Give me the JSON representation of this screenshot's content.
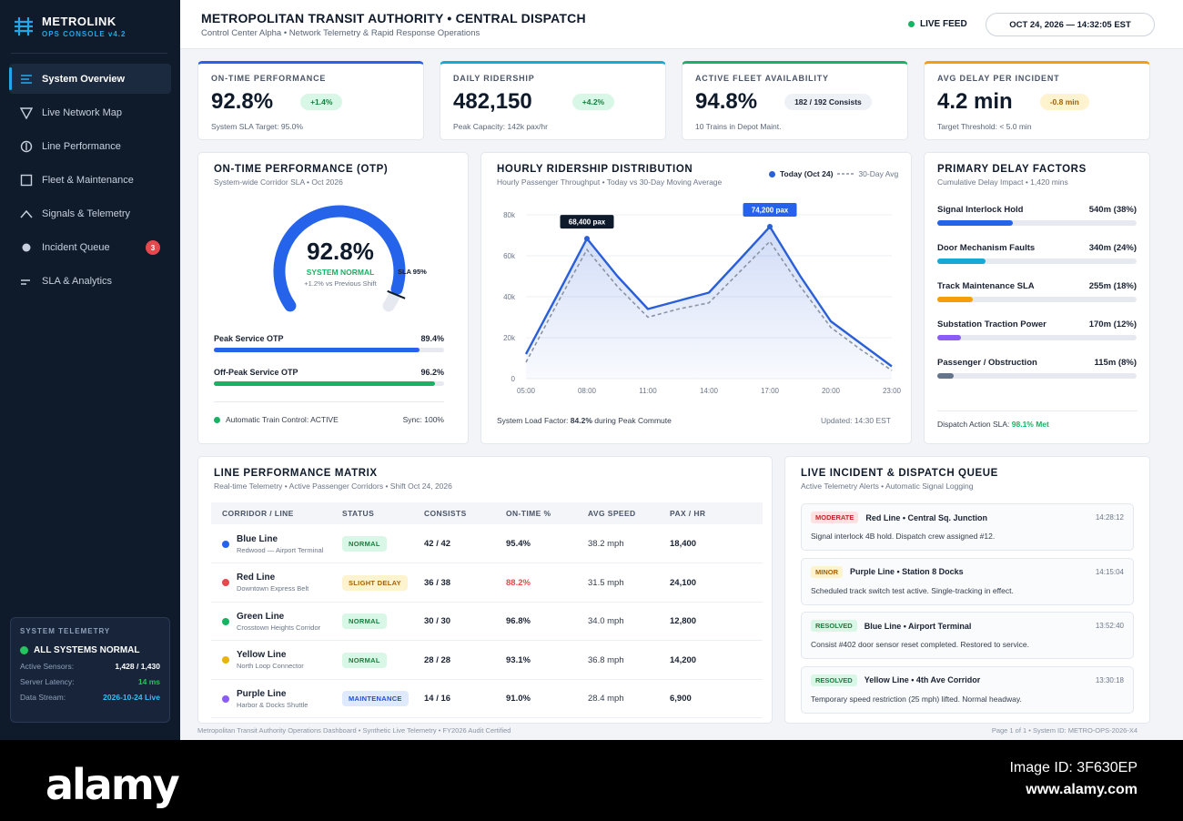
{
  "brand": {
    "title": "METROLINK",
    "subtitle": "OPS CONSOLE v4.2"
  },
  "nav": [
    {
      "label": "System Overview",
      "icon": "list-icon",
      "active": true
    },
    {
      "label": "Live Network Map",
      "icon": "map-icon"
    },
    {
      "label": "Line Performance",
      "icon": "performance-icon"
    },
    {
      "label": "Fleet & Maintenance",
      "icon": "fleet-icon"
    },
    {
      "label": "Signals & Telemetry",
      "icon": "signal-icon"
    },
    {
      "label": "Incident Queue",
      "icon": "incident-icon",
      "badge": "3"
    },
    {
      "label": "SLA & Analytics",
      "icon": "analytics-icon"
    }
  ],
  "telemetry": {
    "heading": "SYSTEM TELEMETRY",
    "status": "ALL SYSTEMS NORMAL",
    "rows": [
      {
        "label": "Active Sensors:",
        "value": "1,428 / 1,430"
      },
      {
        "label": "Server Latency:",
        "value": "14 ms"
      },
      {
        "label": "Data Stream:",
        "value": "2026-10-24 Live"
      }
    ]
  },
  "header": {
    "title": "METROPOLITAN TRANSIT AUTHORITY • CENTRAL DISPATCH",
    "subtitle": "Control Center Alpha • Network Telemetry & Rapid Response Operations",
    "live_label": "LIVE FEED",
    "clock": "OCT 24, 2026 — 14:32:05 EST"
  },
  "kpis": [
    {
      "label": "ON-TIME PERFORMANCE",
      "value": "92.8%",
      "pill": "+1.4%",
      "note": "System SLA Target: 95.0%",
      "accent": "#2563eb",
      "pill_bg": "#d9f7e6",
      "pill_fg": "#15803d"
    },
    {
      "label": "DAILY RIDERSHIP",
      "value": "482,150",
      "pill": "+4.2%",
      "note": "Peak Capacity: 142k pax/hr",
      "accent": "#16a9d6",
      "pill_bg": "#d9f7e6",
      "pill_fg": "#15803d"
    },
    {
      "label": "ACTIVE FLEET AVAILABILITY",
      "value": "94.8%",
      "pill": "182 / 192 Consists",
      "note": "10 Trains in Depot Maint.",
      "accent": "#16b364",
      "pill_bg": "#eef1f5",
      "pill_fg": "#1a2233"
    },
    {
      "label": "AVG DELAY PER INCIDENT",
      "value": "4.2 min",
      "pill": "-0.8 min",
      "note": "Target Threshold: < 5.0 min",
      "accent": "#f59e0b",
      "pill_bg": "#fdf3cf",
      "pill_fg": "#a16207"
    }
  ],
  "otp": {
    "title": "ON-TIME PERFORMANCE (OTP)",
    "subtitle": "System-wide Corridor SLA • Oct 2026",
    "gauge_value": "92.8%",
    "gauge_fraction": 0.928,
    "gauge_status": "SYSTEM NORMAL",
    "gauge_delta": "+1.2% vs Previous Shift",
    "sla_marker": "SLA 95%",
    "sla_fraction": 0.95,
    "bars": [
      {
        "label": "Peak Service OTP",
        "value": "89.4%",
        "fraction": 0.894,
        "color": "#2563eb"
      },
      {
        "label": "Off-Peak Service OTP",
        "value": "96.2%",
        "fraction": 0.962,
        "color": "#16b364"
      }
    ],
    "atc": "Automatic Train Control: ACTIVE",
    "sync": "Sync: 100%"
  },
  "ridership": {
    "title": "HOURLY RIDERSHIP DISTRIBUTION",
    "subtitle": "Hourly Passenger Throughput • Today vs 30-Day Moving Average",
    "legend_today": "Today (Oct 24)",
    "legend_avg": "30-Day Avg",
    "callout_1": "68,400 pax",
    "callout_2": "74,200 pax",
    "footer_prefix": "System Load Factor: ",
    "footer_value": "84.2%",
    "footer_suffix": " during Peak Commute",
    "updated": "Updated: 14:30 EST"
  },
  "chart_data": {
    "type": "area",
    "x": [
      "05:00",
      "06:30",
      "08:00",
      "09:30",
      "11:00",
      "12:30",
      "14:00",
      "15:30",
      "17:00",
      "18:30",
      "20:00",
      "21:30",
      "23:00"
    ],
    "x_ticks": [
      "05:00",
      "08:00",
      "11:00",
      "14:00",
      "17:00",
      "20:00",
      "23:00"
    ],
    "y_ticks": [
      "0",
      "20k",
      "40k",
      "60k",
      "80k"
    ],
    "ylim": [
      0,
      80000
    ],
    "series": [
      {
        "name": "Today (Oct 24)",
        "values": [
          12000,
          40000,
          68400,
          50000,
          34000,
          38000,
          42000,
          58000,
          74200,
          50000,
          28000,
          17000,
          6000
        ],
        "color": "#2a5fd9"
      },
      {
        "name": "30-Day Avg",
        "values": [
          8000,
          36000,
          63000,
          45000,
          30000,
          34000,
          37000,
          52000,
          67000,
          45000,
          25000,
          14000,
          4000
        ],
        "color": "#8a94a4"
      }
    ]
  },
  "delay": {
    "title": "PRIMARY DELAY FACTORS",
    "subtitle": "Cumulative Delay Impact • 1,420 mins",
    "items": [
      {
        "label": "Signal Interlock Hold",
        "value": "540m (38%)",
        "fraction": 0.38,
        "color": "#2563eb"
      },
      {
        "label": "Door Mechanism Faults",
        "value": "340m (24%)",
        "fraction": 0.24,
        "color": "#16a9d6"
      },
      {
        "label": "Track Maintenance SLA",
        "value": "255m (18%)",
        "fraction": 0.18,
        "color": "#f59e0b"
      },
      {
        "label": "Substation Traction Power",
        "value": "170m (12%)",
        "fraction": 0.12,
        "color": "#8b5cf6"
      },
      {
        "label": "Passenger / Obstruction",
        "value": "115m (8%)",
        "fraction": 0.08,
        "color": "#64748b"
      }
    ],
    "footer_prefix": "Dispatch Action SLA: ",
    "footer_value": "98.1% Met"
  },
  "matrix": {
    "title": "LINE PERFORMANCE MATRIX",
    "subtitle": "Real-time Telemetry • Active Passenger Corridors • Shift Oct 24, 2026",
    "columns": [
      "CORRIDOR / LINE",
      "STATUS",
      "CONSISTS",
      "ON-TIME %",
      "AVG SPEED",
      "PAX / HR"
    ],
    "rows": [
      {
        "name": "Blue Line",
        "sub": "Redwood — Airport Terminal",
        "color": "#2563eb",
        "status": "NORMAL",
        "status_bg": "#d9f7e6",
        "status_fg": "#15803d",
        "consists": "42 / 42",
        "ontime": "95.4%",
        "ontime_color": "#1a2233",
        "speed": "38.2 mph",
        "pax": "18,400"
      },
      {
        "name": "Red Line",
        "sub": "Downtown Express Belt",
        "color": "#e5484d",
        "status": "SLIGHT DELAY",
        "status_bg": "#fdf3cf",
        "status_fg": "#a16207",
        "consists": "36 / 38",
        "ontime": "88.2%",
        "ontime_color": "#e5484d",
        "speed": "31.5 mph",
        "pax": "24,100"
      },
      {
        "name": "Green Line",
        "sub": "Crosstown Heights Corridor",
        "color": "#16b364",
        "status": "NORMAL",
        "status_bg": "#d9f7e6",
        "status_fg": "#15803d",
        "consists": "30 / 30",
        "ontime": "96.8%",
        "ontime_color": "#1a2233",
        "speed": "34.0 mph",
        "pax": "12,800"
      },
      {
        "name": "Yellow Line",
        "sub": "North Loop Connector",
        "color": "#eab308",
        "status": "NORMAL",
        "status_bg": "#d9f7e6",
        "status_fg": "#15803d",
        "consists": "28 / 28",
        "ontime": "93.1%",
        "ontime_color": "#1a2233",
        "speed": "36.8 mph",
        "pax": "14,200"
      },
      {
        "name": "Purple Line",
        "sub": "Harbor & Docks Shuttle",
        "color": "#8b5cf6",
        "status": "MAINTENANCE",
        "status_bg": "#e0eaff",
        "status_fg": "#1d4ed8",
        "consists": "14 / 16",
        "ontime": "91.0%",
        "ontime_color": "#1a2233",
        "speed": "28.4 mph",
        "pax": "6,900"
      }
    ]
  },
  "incidents": {
    "title": "LIVE INCIDENT & DISPATCH QUEUE",
    "subtitle": "Active Telemetry Alerts • Automatic Signal Logging",
    "items": [
      {
        "severity": "MODERATE",
        "sev_bg": "#fde2e2",
        "sev_fg": "#c2262b",
        "location": "Red Line • Central Sq. Junction",
        "time": "14:28:12",
        "message": "Signal interlock 4B hold. Dispatch crew assigned #12."
      },
      {
        "severity": "MINOR",
        "sev_bg": "#fdf3cf",
        "sev_fg": "#a16207",
        "location": "Purple Line • Station 8 Docks",
        "time": "14:15:04",
        "message": "Scheduled track switch test active. Single-tracking in effect."
      },
      {
        "severity": "RESOLVED",
        "sev_bg": "#d9f7e6",
        "sev_fg": "#15803d",
        "location": "Blue Line • Airport Terminal",
        "time": "13:52:40",
        "message": "Consist #402 door sensor reset completed. Restored to service."
      },
      {
        "severity": "RESOLVED",
        "sev_bg": "#d9f7e6",
        "sev_fg": "#15803d",
        "location": "Yellow Line • 4th Ave Corridor",
        "time": "13:30:18",
        "message": "Temporary speed restriction (25 mph) lifted. Normal headway."
      }
    ]
  },
  "footer": {
    "left": "Metropolitan Transit Authority Operations Dashboard • Synthetic Live Telemetry • FY2026 Audit Certified",
    "right": "Page 1 of 1 • System ID: METRO-OPS-2026-X4"
  },
  "stock": {
    "logo": "alamy",
    "image_id": "Image ID: 3F630EP",
    "url": "www.alamy.com"
  }
}
